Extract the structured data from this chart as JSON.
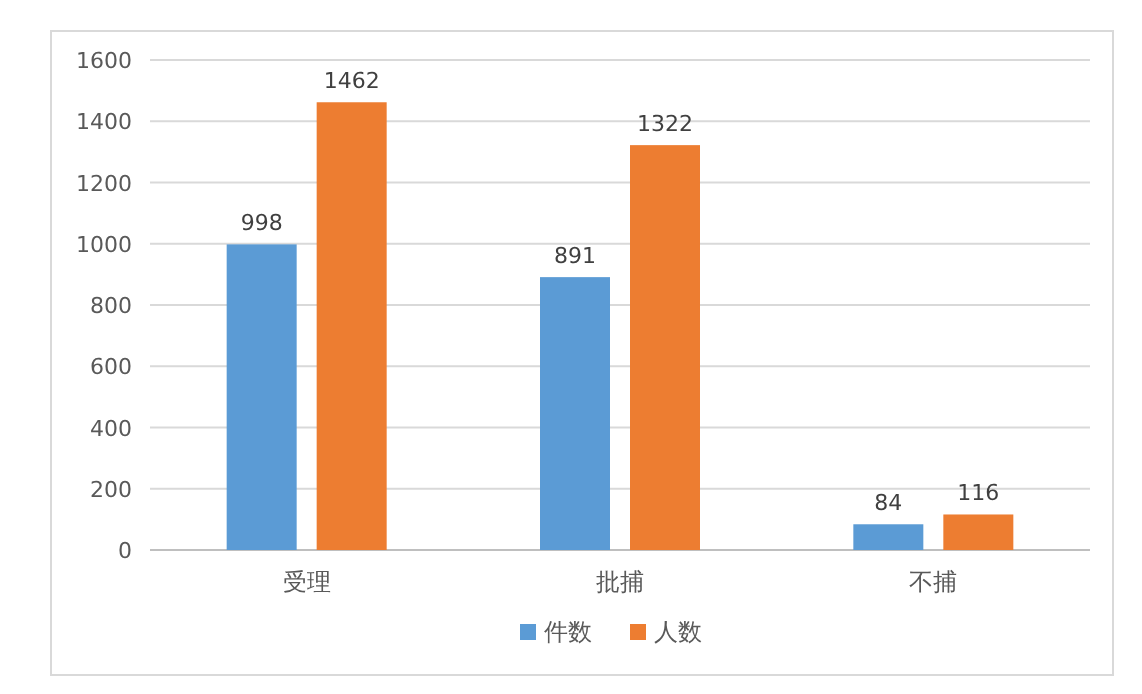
{
  "chart_data": {
    "type": "bar",
    "categories": [
      "受理",
      "批捕",
      "不捕"
    ],
    "series": [
      {
        "name": "件数",
        "color": "#5b9bd5",
        "values": [
          998,
          891,
          84
        ]
      },
      {
        "name": "人数",
        "color": "#ed7d31",
        "values": [
          1462,
          1322,
          116
        ]
      }
    ],
    "ylim": [
      0,
      1600
    ],
    "yticks": [
      0,
      200,
      400,
      600,
      800,
      1000,
      1200,
      1400,
      1600
    ],
    "grid": "y",
    "legend": "bottom",
    "data_labels": true
  }
}
